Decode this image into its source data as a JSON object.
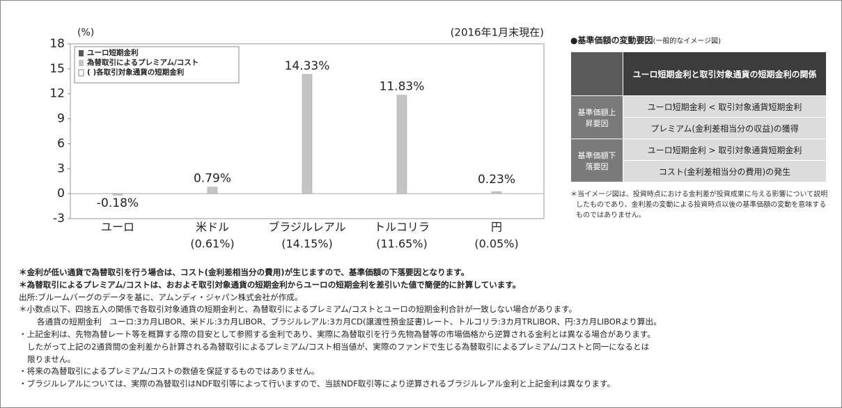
{
  "chart_data": {
    "type": "bar",
    "unit_label": "(%)",
    "date_note": "(2016年1月末現在)",
    "legend": [
      "ユーロ短期金利",
      "為替取引によるプレミアム/コスト",
      "( )各取引対象通貨の短期金利"
    ],
    "categories": [
      "ユーロ",
      "米ドル",
      "ブラジルレアル",
      "トルコリラ",
      "円"
    ],
    "sublabels": [
      null,
      "(0.61%)",
      "(14.15%)",
      "(11.65%)",
      "(0.05%)"
    ],
    "values": [
      -0.18,
      0.79,
      14.33,
      11.83,
      0.23
    ],
    "value_labels": [
      "-0.18%",
      "0.79%",
      "14.33%",
      "11.83%",
      "0.23%"
    ],
    "color": "#c4c4c4",
    "ylim": [
      -3,
      18
    ],
    "yticks": [
      -3,
      0,
      3,
      6,
      9,
      12,
      15,
      18
    ]
  },
  "panel": {
    "title": "●基準価額の変動要因",
    "subtitle": "(一般的なイメージ図)",
    "header": "ユーロ短期金利と取引対象通貨の短期金利の関係",
    "rows": [
      {
        "label": "基準価額上昇要因",
        "relation": "ユーロ短期金利 < 取引対象通貨短期金利",
        "result": "プレミアム(金利差相当分の収益)の獲得"
      },
      {
        "label": "基準価額下落要因",
        "relation": "ユーロ短期金利 > 取引対象通貨短期金利",
        "result": "コスト(金利差相当分の費用)の発生"
      }
    ],
    "note": "＊当イメージ図は、投資時点における金利差が投資成果に与える影響について説明したものであり、金利差の変動による投資時点以後の基準価額の変動を意味するものではありません。"
  },
  "footnotes": [
    "＊金利が低い通貨で為替取引を行う場合は、コスト(金利差相当分の費用)が生じますので、基準価額の下落要因となります。",
    "＊為替取引によるプレミアム/コストは、おおよそ取引対象通貨の短期金利からユーロの短期金利を差引いた値で簡便的に計算しています。",
    "出所:ブルームバーグのデータを基に、アムンディ・ジャパン株式会社が作成。",
    "＊小数点以下、四捨五入の関係で各取引対象通貨の短期金利と、為替取引によるプレミアム/コストとユーロの短期金利合計が一致しない場合があります。",
    "各通貨の短期金利　ユーロ:3カ月LIBOR、米ドル:3カ月LIBOR、ブラジルレアル:3カ月CD(譲渡性預金証書)レート、トルコリラ:3カ月TRLIBOR、円:3カ月LIBORより算出。",
    "・上記金利は、先物為替レート等を概算する際の目安として参照する金利であり、実際に為替取引を行う先物為替等の市場価格から逆算される金利とは異なる場合があります。",
    "したがって上記の2通貨間の金利差から計算される為替取引によるプレミアム/コスト相当値が、実際のファンドで生じる為替取引によるプレミアム/コストと同一になるとは",
    "限りません。",
    "・将来の為替取引によるプレミアム/コストの数値を保証するものではありません。",
    "・ブラジルレアルについては、実際の為替取引はNDF取引等によって行いますので、当該NDF取引等により逆算されるブラジルレアル金利と上記金利は異なります。"
  ]
}
